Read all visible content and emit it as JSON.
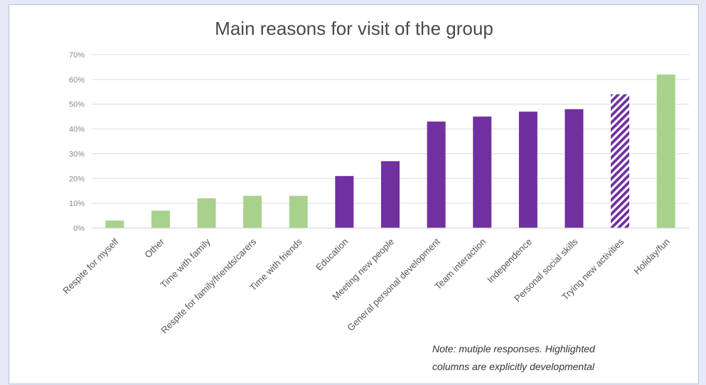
{
  "chart_data": {
    "type": "bar",
    "title": "Main reasons for visit of the group",
    "xlabel": "",
    "ylabel": "",
    "ylim": [
      0,
      70
    ],
    "y_ticks": [
      "0%",
      "10%",
      "20%",
      "30%",
      "40%",
      "50%",
      "60%",
      "70%"
    ],
    "grid": true,
    "categories": [
      "Respite for myself",
      "Other",
      "Time with family",
      "Respite for family/friends/carers",
      "Time with friends",
      "Education",
      "Meeting new people",
      "General personal development",
      "Team interaction",
      "Independence",
      "Personal social skills",
      "Trying new activities",
      "Holiday/fun"
    ],
    "values": [
      3,
      7,
      12,
      13,
      13,
      21,
      27,
      43,
      45,
      47,
      48,
      54,
      62
    ],
    "bar_styles": [
      "green",
      "green",
      "green",
      "green",
      "green",
      "purple",
      "purple",
      "purple",
      "purple",
      "purple",
      "purple",
      "purple-hatched",
      "green"
    ],
    "colors": {
      "green": "#a9d18e",
      "purple": "#7030a0",
      "background": "#e6eaf7"
    },
    "note": [
      "Note: mutiple responses. Highlighted",
      "columns are explicitly developmental"
    ]
  }
}
